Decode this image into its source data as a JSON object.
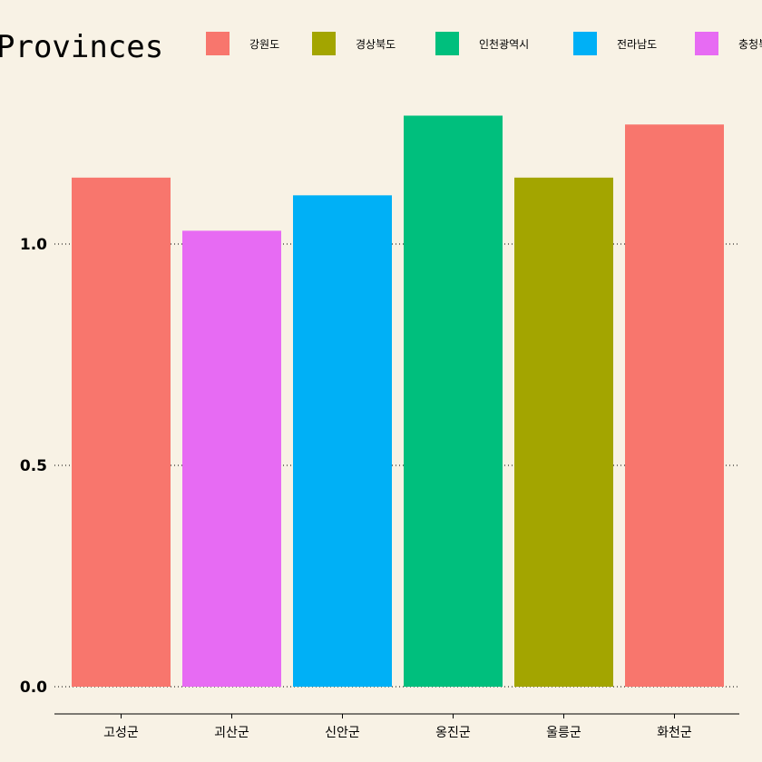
{
  "chart_data": {
    "type": "bar",
    "legend_title": "Provinces",
    "legend_position": "top",
    "categories": [
      "고성군",
      "괴산군",
      "신안군",
      "옹진군",
      "울릉군",
      "화천군"
    ],
    "values": [
      1.15,
      1.03,
      1.11,
      1.29,
      1.15,
      1.27
    ],
    "category_groups": [
      "강원도",
      "충청북도",
      "전라남도",
      "인천광역시",
      "경상북도",
      "강원도"
    ],
    "legend": [
      {
        "label": "강원도",
        "color": "#f8766d"
      },
      {
        "label": "경상북도",
        "color": "#a3a500"
      },
      {
        "label": "인천광역시",
        "color": "#00bf7d"
      },
      {
        "label": "전라남도",
        "color": "#00b0f6"
      },
      {
        "label": "충청북도",
        "color": "#e76bf3"
      }
    ],
    "y_ticks": [
      0.0,
      0.5,
      1.0
    ],
    "y_tick_labels": [
      "0.0",
      "0.5",
      "1.0"
    ],
    "ylim": [
      0,
      1.35
    ],
    "grid": "horizontal dotted"
  }
}
